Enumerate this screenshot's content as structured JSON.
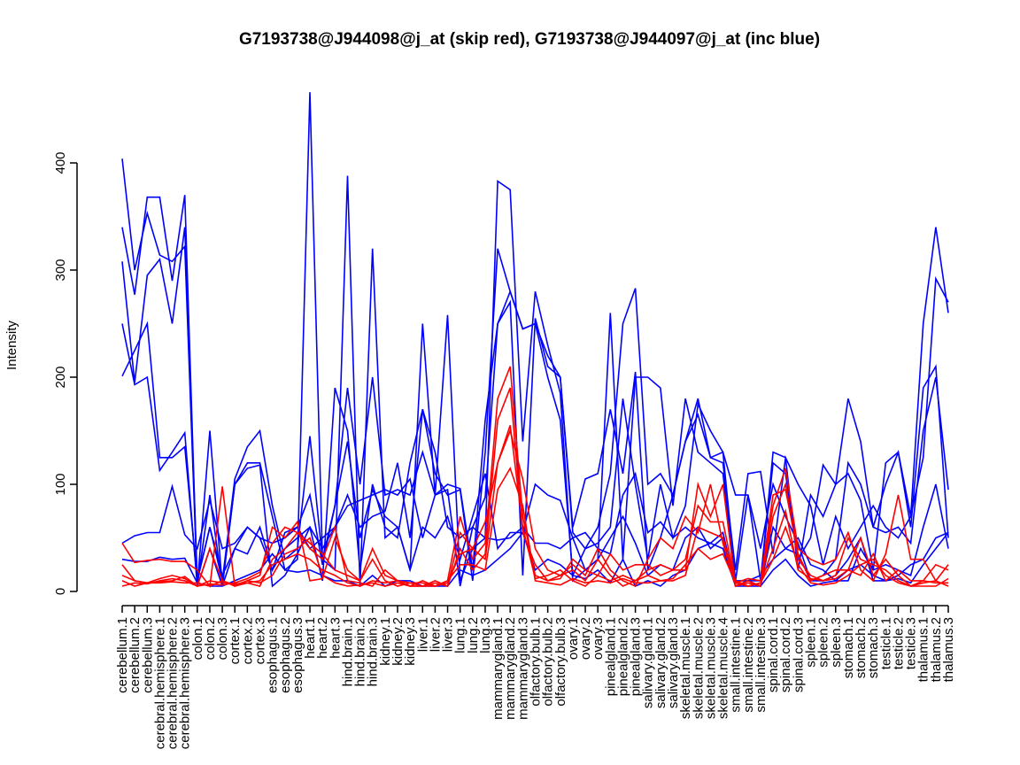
{
  "chart_data": {
    "type": "line",
    "title": "G7193738@J944098@j_at (skip red), G7193738@J944097@j_at (inc blue)",
    "xlabel": "",
    "ylabel": "Intensity",
    "ylim": [
      0,
      400
    ],
    "yticks": [
      "0",
      "100",
      "200",
      "300",
      "400"
    ],
    "grid": false,
    "categories": [
      "cerebellum.1",
      "cerebellum.2",
      "cerebellum.3",
      "cerebral.hemisphere.1",
      "cerebral.hemisphere.2",
      "cerebral.hemisphere.3",
      "colon.1",
      "colon.2",
      "colon.3",
      "cortex.1",
      "cortex.2",
      "cortex.3",
      "esophagus.1",
      "esophagus.2",
      "esophagus.3",
      "heart.1",
      "heart.2",
      "heart.3",
      "hind.brain.1",
      "hind.brain.2",
      "hind.brain.3",
      "kidney.1",
      "kidney.2",
      "kidney.3",
      "liver.1",
      "liver.2",
      "liver.3",
      "lung.1",
      "lung.2",
      "lung.3",
      "mammarygland.1",
      "mammarygland.2",
      "mammarygland.3",
      "olfactory.bulb.1",
      "olfactory.bulb.2",
      "olfactory.bulb.3",
      "ovary.1",
      "ovary.2",
      "ovary.3",
      "pinealgland.1",
      "pinealgland.2",
      "pinealgland.3",
      "salivary.gland.1",
      "salivary.gland.2",
      "salivary.gland.3",
      "skeletal.muscle.1",
      "skeletal.muscle.2",
      "skeletal.muscle.3",
      "skeletal.muscle.4",
      "small.intestine.1",
      "small.intestine.2",
      "small.intestine.3",
      "spinal.cord.1",
      "spinal.cord.2",
      "spinal.cord.3",
      "spleen.1",
      "spleen.2",
      "spleen.3",
      "stomach.1",
      "stomach.2",
      "stomach.3",
      "testicle.1",
      "testicle.2",
      "testicle.3",
      "thalamus.1",
      "thalamus.2",
      "thalamus.3"
    ],
    "series": [
      {
        "name": "inc blue 1",
        "color": "#0000ff",
        "values": [
          404,
          300,
          353,
          314,
          308,
          322,
          5,
          150,
          5,
          100,
          120,
          120,
          70,
          20,
          30,
          466,
          30,
          20,
          388,
          5,
          320,
          50,
          60,
          20,
          250,
          90,
          258,
          10,
          40,
          50,
          383,
          375,
          140,
          280,
          230,
          185,
          10,
          20,
          30,
          260,
          30,
          200,
          200,
          190,
          80,
          180,
          130,
          120,
          110,
          10,
          10,
          10,
          130,
          125,
          20,
          90,
          70,
          100,
          180,
          140,
          60,
          100,
          130,
          70,
          250,
          340,
          260
        ]
      },
      {
        "name": "inc blue 2",
        "color": "#0000ff",
        "values": [
          340,
          277,
          368,
          368,
          290,
          370,
          5,
          90,
          5,
          40,
          35,
          60,
          20,
          40,
          50,
          60,
          10,
          190,
          150,
          20,
          100,
          60,
          50,
          120,
          170,
          110,
          90,
          95,
          10,
          130,
          320,
          280,
          245,
          250,
          200,
          160,
          15,
          40,
          60,
          110,
          250,
          283,
          100,
          110,
          90,
          140,
          165,
          125,
          130,
          10,
          90,
          10,
          120,
          110,
          30,
          50,
          118,
          100,
          110,
          85,
          20,
          120,
          130,
          60,
          190,
          210,
          50
        ]
      },
      {
        "name": "inc blue 3",
        "color": "#0000ff",
        "values": [
          308,
          195,
          295,
          310,
          250,
          340,
          10,
          60,
          10,
          105,
          135,
          150,
          80,
          30,
          40,
          145,
          30,
          80,
          190,
          100,
          200,
          90,
          95,
          90,
          130,
          90,
          100,
          96,
          20,
          160,
          250,
          280,
          245,
          250,
          220,
          200,
          60,
          105,
          110,
          170,
          110,
          205,
          20,
          50,
          90,
          140,
          180,
          125,
          120,
          20,
          110,
          112,
          35,
          125,
          100,
          80,
          25,
          70,
          40,
          60,
          80,
          60,
          50,
          70,
          125,
          292,
          270
        ]
      },
      {
        "name": "inc blue 4",
        "color": "#0000ff",
        "values": [
          250,
          193,
          200,
          113,
          130,
          148,
          5,
          40,
          5,
          100,
          115,
          118,
          5,
          15,
          35,
          60,
          40,
          60,
          80,
          85,
          90,
          95,
          90,
          105,
          50,
          90,
          95,
          5,
          60,
          88,
          250,
          270,
          15,
          255,
          210,
          200,
          55,
          40,
          45,
          60,
          180,
          100,
          30,
          100,
          50,
          80,
          175,
          150,
          130,
          90,
          90,
          40,
          100,
          70,
          45,
          10,
          15,
          30,
          120,
          100,
          60,
          55,
          60,
          45,
          150,
          200,
          95
        ]
      },
      {
        "name": "inc blue 5",
        "color": "#0000ff",
        "values": [
          201,
          225,
          250,
          125,
          125,
          135,
          10,
          60,
          15,
          40,
          60,
          50,
          20,
          55,
          60,
          90,
          25,
          80,
          140,
          50,
          95,
          70,
          60,
          20,
          60,
          50,
          70,
          30,
          70,
          110,
          40,
          55,
          55,
          100,
          90,
          85,
          50,
          55,
          40,
          35,
          90,
          110,
          55,
          65,
          50,
          60,
          50,
          45,
          55,
          5,
          10,
          15,
          30,
          40,
          50,
          25,
          20,
          10,
          10,
          40,
          20,
          25,
          20,
          15,
          60,
          100,
          40
        ]
      },
      {
        "name": "inc blue 6",
        "color": "#0000ff",
        "values": [
          45,
          52,
          55,
          55,
          98,
          53,
          40,
          85,
          40,
          45,
          60,
          50,
          45,
          50,
          60,
          40,
          50,
          60,
          90,
          60,
          70,
          75,
          120,
          50,
          170,
          130,
          60,
          50,
          60,
          50,
          48,
          50,
          60,
          45,
          45,
          40,
          50,
          20,
          30,
          50,
          70,
          45,
          15,
          25,
          20,
          50,
          60,
          40,
          50,
          5,
          10,
          5,
          60,
          40,
          35,
          10,
          10,
          15,
          30,
          50,
          10,
          10,
          15,
          25,
          30,
          50,
          55
        ]
      },
      {
        "name": "inc blue 7",
        "color": "#0000ff",
        "values": [
          30,
          28,
          28,
          32,
          30,
          31,
          8,
          5,
          5,
          10,
          15,
          20,
          35,
          20,
          18,
          20,
          15,
          10,
          10,
          5,
          15,
          5,
          10,
          10,
          5,
          5,
          5,
          20,
          15,
          20,
          30,
          40,
          55,
          20,
          30,
          25,
          15,
          12,
          20,
          8,
          30,
          5,
          10,
          5,
          15,
          20,
          40,
          45,
          40,
          5,
          5,
          5,
          20,
          30,
          15,
          5,
          8,
          10,
          20,
          25,
          15,
          10,
          12,
          8,
          25,
          40,
          55
        ]
      },
      {
        "name": "skip red 1",
        "color": "#ff0000",
        "values": [
          45,
          27,
          29,
          30,
          28,
          28,
          20,
          5,
          98,
          5,
          10,
          15,
          60,
          50,
          65,
          10,
          12,
          50,
          20,
          10,
          40,
          15,
          10,
          5,
          5,
          10,
          5,
          55,
          40,
          65,
          120,
          150,
          105,
          40,
          20,
          15,
          25,
          15,
          40,
          20,
          10,
          5,
          30,
          50,
          40,
          70,
          55,
          100,
          45,
          5,
          10,
          5,
          80,
          115,
          40,
          30,
          25,
          30,
          55,
          20,
          10,
          35,
          90,
          30,
          30,
          10,
          25
        ]
      },
      {
        "name": "skip red 2",
        "color": "#ff0000",
        "values": [
          25,
          10,
          8,
          12,
          15,
          12,
          5,
          40,
          10,
          5,
          8,
          5,
          30,
          40,
          55,
          40,
          30,
          60,
          10,
          8,
          5,
          20,
          10,
          5,
          5,
          5,
          10,
          70,
          30,
          45,
          180,
          210,
          70,
          15,
          10,
          12,
          30,
          20,
          15,
          35,
          20,
          25,
          25,
          15,
          20,
          30,
          80,
          65,
          65,
          8,
          12,
          10,
          90,
          95,
          35,
          10,
          15,
          20,
          20,
          50,
          15,
          30,
          15,
          5,
          10,
          25,
          20
        ]
      },
      {
        "name": "skip red 3",
        "color": "#ff0000",
        "values": [
          10,
          5,
          8,
          9,
          10,
          14,
          5,
          7,
          6,
          8,
          12,
          18,
          45,
          60,
          55,
          45,
          35,
          20,
          15,
          10,
          30,
          10,
          5,
          8,
          5,
          8,
          5,
          40,
          20,
          35,
          160,
          190,
          55,
          25,
          10,
          15,
          20,
          10,
          30,
          15,
          5,
          10,
          20,
          25,
          20,
          20,
          100,
          70,
          100,
          5,
          8,
          5,
          70,
          100,
          30,
          15,
          10,
          15,
          50,
          30,
          25,
          20,
          10,
          5,
          8,
          10,
          5
        ]
      },
      {
        "name": "skip red 4",
        "color": "#ff0000",
        "values": [
          5,
          8,
          7,
          10,
          12,
          10,
          5,
          10,
          8,
          7,
          8,
          10,
          25,
          30,
          35,
          30,
          20,
          15,
          8,
          5,
          10,
          8,
          10,
          8,
          8,
          5,
          8,
          35,
          40,
          30,
          120,
          155,
          60,
          12,
          15,
          20,
          10,
          5,
          15,
          10,
          15,
          10,
          15,
          10,
          10,
          15,
          60,
          55,
          50,
          10,
          5,
          8,
          40,
          75,
          20,
          12,
          10,
          12,
          20,
          15,
          35,
          10,
          20,
          10,
          10,
          8,
          8
        ]
      },
      {
        "name": "skip red 5",
        "color": "#ff0000",
        "values": [
          15,
          10,
          8,
          8,
          9,
          8,
          8,
          5,
          10,
          6,
          10,
          8,
          15,
          35,
          40,
          50,
          15,
          8,
          5,
          6,
          8,
          5,
          8,
          5,
          10,
          5,
          10,
          25,
          25,
          20,
          95,
          115,
          80,
          10,
          8,
          6,
          12,
          8,
          10,
          8,
          12,
          8,
          8,
          10,
          12,
          25,
          40,
          30,
          35,
          8,
          5,
          8,
          30,
          60,
          25,
          8,
          6,
          8,
          15,
          25,
          30,
          15,
          8,
          5,
          5,
          5,
          12
        ]
      }
    ]
  }
}
